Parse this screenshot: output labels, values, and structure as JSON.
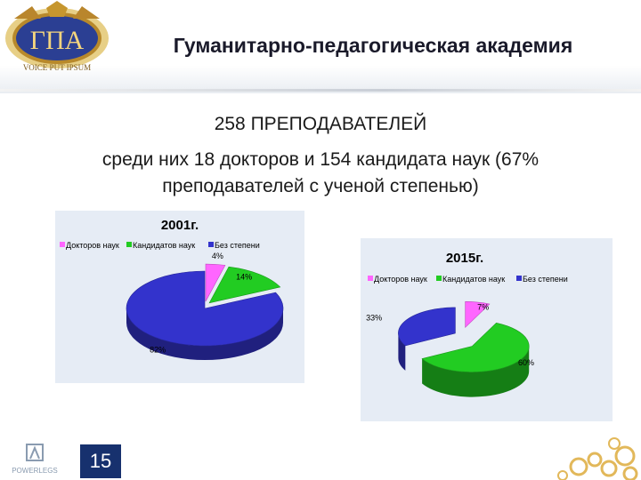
{
  "header": {
    "title": "Гуманитарно-педагогическая академия",
    "logo_text": "VOICE PUT IPSUM"
  },
  "headline": {
    "line1": "258 ПРЕПОДАВАТЕЛЕЙ",
    "line2": "среди них 18 докторов и 154 кандидата наук (67%",
    "line3": "преподавателей с ученой степенью)"
  },
  "chart_data": [
    {
      "type": "pie",
      "title": "2001г.",
      "categories": [
        "Докторов наук",
        "Кандидатов наук",
        "Без степени"
      ],
      "values": [
        4,
        14,
        82
      ],
      "value_labels": [
        "4%",
        "14%",
        "82%"
      ],
      "colors": [
        "#ff66ff",
        "#22cc22",
        "#3333cc"
      ],
      "legend": "top"
    },
    {
      "type": "pie",
      "title": "2015г.",
      "categories": [
        "Докторов наук",
        "Кандидатов наук",
        "Без степени"
      ],
      "values": [
        7,
        60,
        33
      ],
      "value_labels": [
        "7%",
        "60%",
        "33%"
      ],
      "colors": [
        "#ff66ff",
        "#22cc22",
        "#3333cc"
      ],
      "legend": "top"
    }
  ],
  "footer": {
    "page_number": "15",
    "brand": "POWERLEGS"
  }
}
